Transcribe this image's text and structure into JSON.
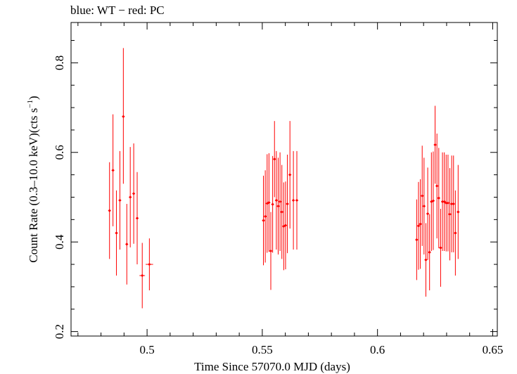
{
  "chart_data": {
    "type": "scatter",
    "title": "blue: WT − red: PC",
    "xlabel": "Time Since 57070.0 MJD (days)",
    "ylabel_main": "Count Rate (0.3–10.0 keV)(cts s",
    "ylabel_sup": "−1",
    "ylabel_end": ")",
    "xlim": [
      0.467,
      0.652
    ],
    "ylim": [
      0.19,
      0.89
    ],
    "x_ticks": [
      {
        "value": 0.5,
        "label": "0.5"
      },
      {
        "value": 0.55,
        "label": "0.55"
      },
      {
        "value": 0.6,
        "label": "0.6"
      },
      {
        "value": 0.65,
        "label": "0.65"
      }
    ],
    "y_ticks": [
      {
        "value": 0.2,
        "label": "0.2"
      },
      {
        "value": 0.4,
        "label": "0.4"
      },
      {
        "value": 0.6,
        "label": "0.6"
      },
      {
        "value": 0.8,
        "label": "0.8"
      }
    ],
    "x_minor_step": 0.01,
    "y_minor_step": 0.05,
    "grid": false,
    "series": [
      {
        "name": "PC",
        "color": "#ff0000",
        "points": [
          {
            "x": 0.4837,
            "y": 0.47,
            "yerr_lo": 0.108,
            "yerr_hi": 0.108
          },
          {
            "x": 0.4852,
            "y": 0.56,
            "yerr_lo": 0.125,
            "yerr_hi": 0.125
          },
          {
            "x": 0.4867,
            "y": 0.42,
            "yerr_lo": 0.095,
            "yerr_hi": 0.095
          },
          {
            "x": 0.4882,
            "y": 0.493,
            "yerr_lo": 0.11,
            "yerr_hi": 0.11
          },
          {
            "x": 0.4897,
            "y": 0.68,
            "yerr_lo": 0.15,
            "yerr_hi": 0.153
          },
          {
            "x": 0.4912,
            "y": 0.395,
            "yerr_lo": 0.09,
            "yerr_hi": 0.09
          },
          {
            "x": 0.4927,
            "y": 0.5,
            "yerr_lo": 0.112,
            "yerr_hi": 0.112
          },
          {
            "x": 0.4942,
            "y": 0.508,
            "yerr_lo": 0.112,
            "yerr_hi": 0.112
          },
          {
            "x": 0.4957,
            "y": 0.453,
            "yerr_lo": 0.103,
            "yerr_hi": 0.103
          },
          {
            "x": 0.4979,
            "y": 0.325,
            "yerr_lo": 0.073,
            "yerr_hi": 0.073,
            "xerr": 0.0012
          },
          {
            "x": 0.501,
            "y": 0.35,
            "yerr_lo": 0.058,
            "yerr_hi": 0.058,
            "xerr": 0.0016
          },
          {
            "x": 0.5505,
            "y": 0.448,
            "yerr_lo": 0.1,
            "yerr_hi": 0.1
          },
          {
            "x": 0.5513,
            "y": 0.457,
            "yerr_lo": 0.103,
            "yerr_hi": 0.103
          },
          {
            "x": 0.5521,
            "y": 0.486,
            "yerr_lo": 0.11,
            "yerr_hi": 0.11
          },
          {
            "x": 0.5529,
            "y": 0.488,
            "yerr_lo": 0.11,
            "yerr_hi": 0.11
          },
          {
            "x": 0.5537,
            "y": 0.38,
            "yerr_lo": 0.087,
            "yerr_hi": 0.087
          },
          {
            "x": 0.5545,
            "y": 0.484,
            "yerr_lo": 0.108,
            "yerr_hi": 0.108
          },
          {
            "x": 0.5553,
            "y": 0.585,
            "yerr_lo": 0.085,
            "yerr_hi": 0.085
          },
          {
            "x": 0.5561,
            "y": 0.493,
            "yerr_lo": 0.11,
            "yerr_hi": 0.11
          },
          {
            "x": 0.5569,
            "y": 0.48,
            "yerr_lo": 0.108,
            "yerr_hi": 0.108
          },
          {
            "x": 0.5577,
            "y": 0.49,
            "yerr_lo": 0.11,
            "yerr_hi": 0.11
          },
          {
            "x": 0.5585,
            "y": 0.467,
            "yerr_lo": 0.105,
            "yerr_hi": 0.105
          },
          {
            "x": 0.5593,
            "y": 0.435,
            "yerr_lo": 0.098,
            "yerr_hi": 0.098
          },
          {
            "x": 0.5601,
            "y": 0.437,
            "yerr_lo": 0.098,
            "yerr_hi": 0.098
          },
          {
            "x": 0.5609,
            "y": 0.485,
            "yerr_lo": 0.11,
            "yerr_hi": 0.11
          },
          {
            "x": 0.562,
            "y": 0.55,
            "yerr_lo": 0.12,
            "yerr_hi": 0.12
          },
          {
            "x": 0.5635,
            "y": 0.493,
            "yerr_lo": 0.11,
            "yerr_hi": 0.11
          },
          {
            "x": 0.565,
            "y": 0.493,
            "yerr_lo": 0.11,
            "yerr_hi": 0.11
          },
          {
            "x": 0.617,
            "y": 0.405,
            "yerr_lo": 0.09,
            "yerr_hi": 0.09
          },
          {
            "x": 0.6178,
            "y": 0.436,
            "yerr_lo": 0.098,
            "yerr_hi": 0.098
          },
          {
            "x": 0.6186,
            "y": 0.44,
            "yerr_lo": 0.1,
            "yerr_hi": 0.1
          },
          {
            "x": 0.6194,
            "y": 0.503,
            "yerr_lo": 0.112,
            "yerr_hi": 0.112
          },
          {
            "x": 0.6202,
            "y": 0.48,
            "yerr_lo": 0.108,
            "yerr_hi": 0.108
          },
          {
            "x": 0.621,
            "y": 0.36,
            "yerr_lo": 0.082,
            "yerr_hi": 0.082
          },
          {
            "x": 0.6218,
            "y": 0.463,
            "yerr_lo": 0.103,
            "yerr_hi": 0.103
          },
          {
            "x": 0.6226,
            "y": 0.377,
            "yerr_lo": 0.085,
            "yerr_hi": 0.085
          },
          {
            "x": 0.6234,
            "y": 0.49,
            "yerr_lo": 0.11,
            "yerr_hi": 0.11
          },
          {
            "x": 0.6242,
            "y": 0.492,
            "yerr_lo": 0.11,
            "yerr_hi": 0.11
          },
          {
            "x": 0.625,
            "y": 0.617,
            "yerr_lo": 0.087,
            "yerr_hi": 0.087
          },
          {
            "x": 0.6258,
            "y": 0.525,
            "yerr_lo": 0.117,
            "yerr_hi": 0.117
          },
          {
            "x": 0.6266,
            "y": 0.498,
            "yerr_lo": 0.112,
            "yerr_hi": 0.112
          },
          {
            "x": 0.6274,
            "y": 0.387,
            "yerr_lo": 0.087,
            "yerr_hi": 0.087
          },
          {
            "x": 0.6282,
            "y": 0.49,
            "yerr_lo": 0.11,
            "yerr_hi": 0.11
          },
          {
            "x": 0.629,
            "y": 0.49,
            "yerr_lo": 0.11,
            "yerr_hi": 0.11
          },
          {
            "x": 0.6298,
            "y": 0.487,
            "yerr_lo": 0.108,
            "yerr_hi": 0.108
          },
          {
            "x": 0.6306,
            "y": 0.487,
            "yerr_lo": 0.108,
            "yerr_hi": 0.108
          },
          {
            "x": 0.6314,
            "y": 0.462,
            "yerr_lo": 0.103,
            "yerr_hi": 0.103
          },
          {
            "x": 0.6322,
            "y": 0.485,
            "yerr_lo": 0.108,
            "yerr_hi": 0.108
          },
          {
            "x": 0.633,
            "y": 0.485,
            "yerr_lo": 0.108,
            "yerr_hi": 0.108
          },
          {
            "x": 0.6338,
            "y": 0.42,
            "yerr_lo": 0.095,
            "yerr_hi": 0.095
          },
          {
            "x": 0.635,
            "y": 0.467,
            "yerr_lo": 0.105,
            "yerr_hi": 0.105
          }
        ]
      }
    ]
  }
}
